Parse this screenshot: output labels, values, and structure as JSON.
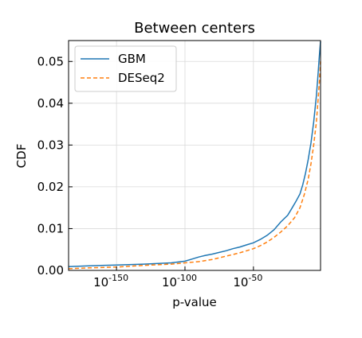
{
  "chart_data": {
    "type": "line",
    "title": "Between centers",
    "xlabel": "p-value",
    "ylabel": "CDF",
    "x_scale": "log10",
    "xlim_exponent": [
      -185,
      -1
    ],
    "ylim": [
      0,
      0.055
    ],
    "x_ticks": [
      {
        "exponent": -150,
        "base": "10",
        "sup": "-150"
      },
      {
        "exponent": -100,
        "base": "10",
        "sup": "-100"
      },
      {
        "exponent": -50,
        "base": "10",
        "sup": "-50"
      }
    ],
    "y_ticks": [
      "0.00",
      "0.01",
      "0.02",
      "0.03",
      "0.04",
      "0.05"
    ],
    "y_tick_values": [
      0,
      0.01,
      0.02,
      0.03,
      0.04,
      0.05
    ],
    "grid": true,
    "legend_position": "top-left",
    "series": [
      {
        "name": "GBM",
        "color": "#1f77b4",
        "style": "solid",
        "points": [
          [
            -185,
            0.0009
          ],
          [
            -170,
            0.0011
          ],
          [
            -150,
            0.0013
          ],
          [
            -130,
            0.0015
          ],
          [
            -110,
            0.0018
          ],
          [
            -100,
            0.0022
          ],
          [
            -95,
            0.0027
          ],
          [
            -90,
            0.0032
          ],
          [
            -85,
            0.0036
          ],
          [
            -80,
            0.0039
          ],
          [
            -75,
            0.0043
          ],
          [
            -70,
            0.0047
          ],
          [
            -65,
            0.0052
          ],
          [
            -60,
            0.0056
          ],
          [
            -55,
            0.0061
          ],
          [
            -50,
            0.0066
          ],
          [
            -45,
            0.0074
          ],
          [
            -40,
            0.0084
          ],
          [
            -35,
            0.0097
          ],
          [
            -30,
            0.0116
          ],
          [
            -25,
            0.0132
          ],
          [
            -22,
            0.0148
          ],
          [
            -19,
            0.0165
          ],
          [
            -16,
            0.0183
          ],
          [
            -14,
            0.0205
          ],
          [
            -12,
            0.0232
          ],
          [
            -10,
            0.0265
          ],
          [
            -8,
            0.0305
          ],
          [
            -6,
            0.0355
          ],
          [
            -4,
            0.0418
          ],
          [
            -3,
            0.0462
          ],
          [
            -2,
            0.0508
          ],
          [
            -1,
            0.0548
          ]
        ]
      },
      {
        "name": "DESeq2",
        "color": "#ff7f0e",
        "style": "dashed",
        "points": [
          [
            -185,
            0.0004
          ],
          [
            -170,
            0.0006
          ],
          [
            -150,
            0.0008
          ],
          [
            -130,
            0.0012
          ],
          [
            -110,
            0.0015
          ],
          [
            -100,
            0.0018
          ],
          [
            -90,
            0.0021
          ],
          [
            -80,
            0.0026
          ],
          [
            -75,
            0.003
          ],
          [
            -70,
            0.0034
          ],
          [
            -65,
            0.0038
          ],
          [
            -60,
            0.0042
          ],
          [
            -55,
            0.0047
          ],
          [
            -50,
            0.0052
          ],
          [
            -45,
            0.0059
          ],
          [
            -40,
            0.0068
          ],
          [
            -35,
            0.0079
          ],
          [
            -30,
            0.0092
          ],
          [
            -25,
            0.0107
          ],
          [
            -20,
            0.0126
          ],
          [
            -16,
            0.015
          ],
          [
            -13,
            0.018
          ],
          [
            -10,
            0.0218
          ],
          [
            -8,
            0.0255
          ],
          [
            -6,
            0.03
          ],
          [
            -4,
            0.0355
          ],
          [
            -3,
            0.04
          ],
          [
            -2,
            0.0445
          ],
          [
            -1,
            0.05
          ]
        ]
      }
    ]
  }
}
